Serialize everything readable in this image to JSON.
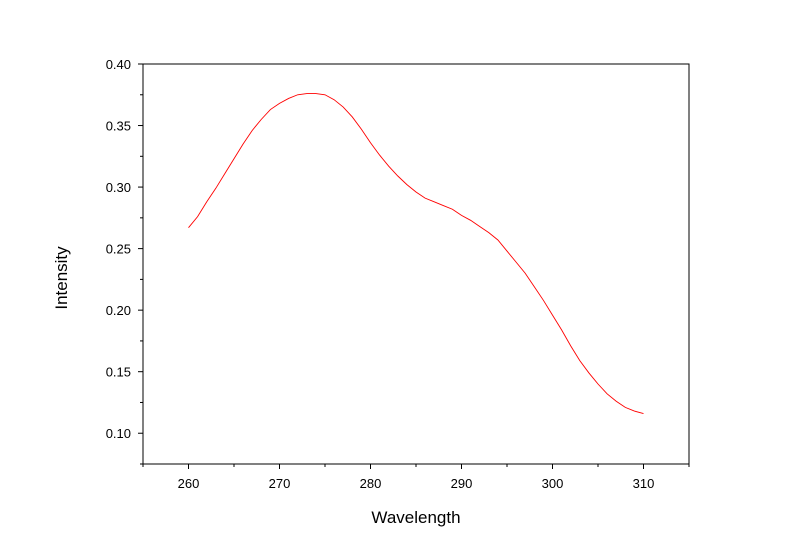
{
  "chart_data": {
    "type": "line",
    "title": "",
    "xlabel": "Wavelength",
    "ylabel": "Intensity",
    "xlim": [
      255,
      315
    ],
    "ylim": [
      0.075,
      0.4
    ],
    "x_ticks": [
      260,
      270,
      280,
      290,
      300,
      310
    ],
    "x_tick_labels": [
      "260",
      "270",
      "280",
      "290",
      "300",
      "310"
    ],
    "y_ticks": [
      0.1,
      0.15,
      0.2,
      0.25,
      0.3,
      0.35,
      0.4
    ],
    "y_tick_labels": [
      "0.10",
      "0.15",
      "0.20",
      "0.25",
      "0.30",
      "0.35",
      "0.40"
    ],
    "grid": false,
    "legend": "none",
    "line_color": "#ff0000",
    "series": [
      {
        "x": [
          260,
          261,
          262,
          263,
          264,
          265,
          266,
          267,
          268,
          269,
          270,
          271,
          272,
          273,
          274,
          275,
          276,
          277,
          278,
          279,
          280,
          281,
          282,
          283,
          284,
          285,
          286,
          287,
          288,
          289,
          290,
          291,
          292,
          293,
          294,
          295,
          296,
          297,
          298,
          299,
          300,
          301,
          302,
          303,
          304,
          305,
          306,
          307,
          308,
          309,
          310
        ],
        "y": [
          0.267,
          0.276,
          0.288,
          0.299,
          0.311,
          0.323,
          0.335,
          0.346,
          0.355,
          0.363,
          0.368,
          0.372,
          0.375,
          0.376,
          0.376,
          0.375,
          0.371,
          0.365,
          0.357,
          0.347,
          0.336,
          0.326,
          0.317,
          0.309,
          0.302,
          0.296,
          0.291,
          0.288,
          0.285,
          0.282,
          0.277,
          0.273,
          0.268,
          0.263,
          0.257,
          0.248,
          0.239,
          0.23,
          0.219,
          0.208,
          0.196,
          0.184,
          0.171,
          0.159,
          0.149,
          0.14,
          0.132,
          0.126,
          0.121,
          0.118,
          0.116
        ]
      }
    ]
  }
}
